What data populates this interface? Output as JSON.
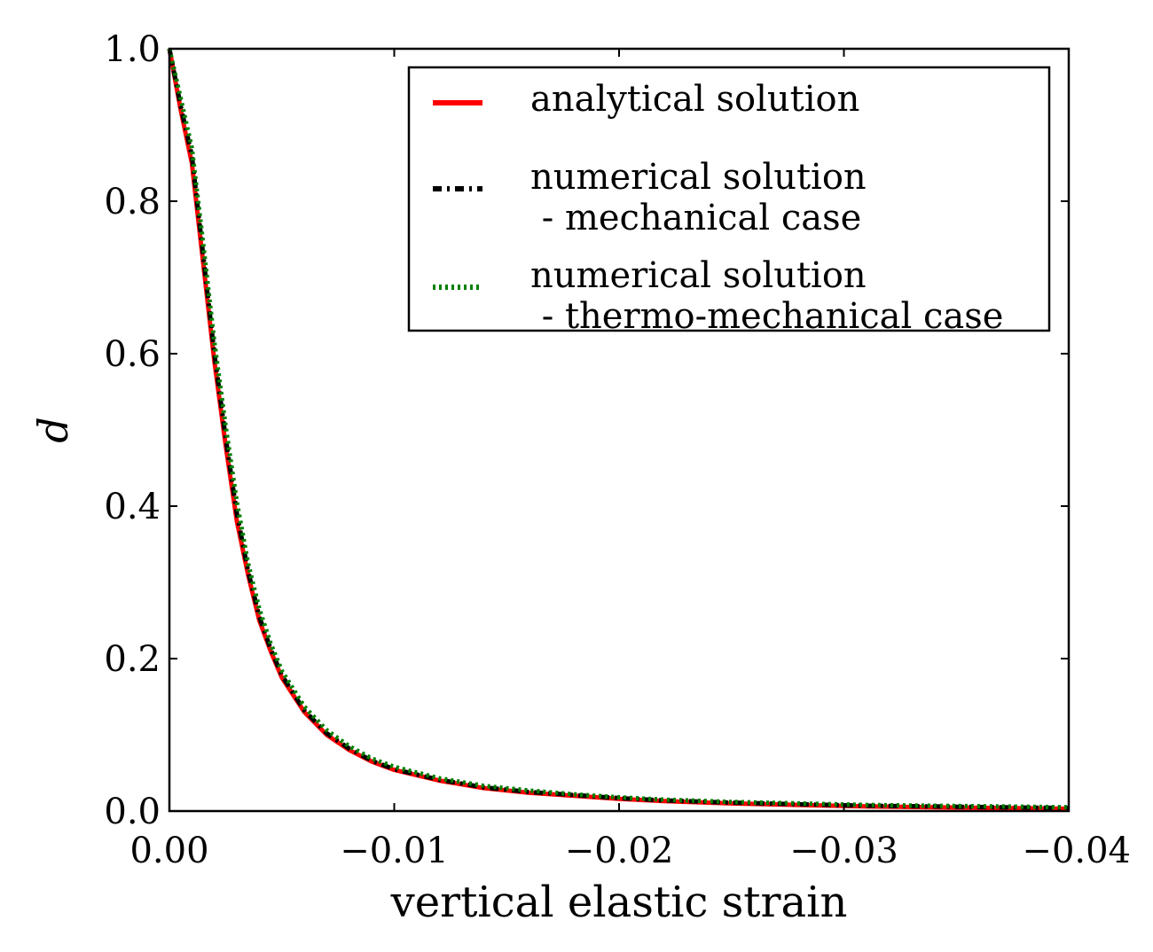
{
  "chart_data": {
    "type": "line",
    "xlabel": "vertical elastic strain",
    "ylabel": "d",
    "xlim": [
      0.0,
      -0.04
    ],
    "ylim": [
      0.0,
      1.0
    ],
    "x_reversed": true,
    "grid": false,
    "legend_position": "top-right",
    "x_ticks": [
      {
        "value": 0.0,
        "label": "0.00"
      },
      {
        "value": -0.01,
        "label": "−0.01"
      },
      {
        "value": -0.02,
        "label": "−0.02"
      },
      {
        "value": -0.03,
        "label": "−0.03"
      },
      {
        "value": -0.04,
        "label": "−0.04"
      }
    ],
    "y_ticks": [
      {
        "value": 0.0,
        "label": "0.0"
      },
      {
        "value": 0.2,
        "label": "0.2"
      },
      {
        "value": 0.4,
        "label": "0.4"
      },
      {
        "value": 0.6,
        "label": "0.6"
      },
      {
        "value": 0.8,
        "label": "0.8"
      },
      {
        "value": 1.0,
        "label": "1.0"
      }
    ],
    "series": [
      {
        "name_lines": [
          "analytical solution"
        ],
        "color": "#ff0000",
        "style": "solid",
        "x": [
          0.0,
          -0.0005,
          -0.001,
          -0.0015,
          -0.002,
          -0.0025,
          -0.003,
          -0.0035,
          -0.004,
          -0.0045,
          -0.005,
          -0.006,
          -0.007,
          -0.008,
          -0.009,
          -0.01,
          -0.012,
          -0.014,
          -0.016,
          -0.018,
          -0.02,
          -0.022,
          -0.025,
          -0.028,
          -0.031,
          -0.034,
          -0.037,
          -0.04
        ],
        "y": [
          1.0,
          0.92,
          0.85,
          0.72,
          0.59,
          0.48,
          0.38,
          0.31,
          0.25,
          0.21,
          0.175,
          0.13,
          0.1,
          0.08,
          0.065,
          0.054,
          0.04,
          0.03,
          0.024,
          0.02,
          0.016,
          0.013,
          0.01,
          0.008,
          0.006,
          0.005,
          0.004,
          0.003
        ]
      },
      {
        "name_lines": [
          "numerical solution",
          " - mechanical case"
        ],
        "color": "#000000",
        "style": "dashdot",
        "x": [
          0.0,
          -0.0005,
          -0.001,
          -0.0015,
          -0.002,
          -0.0025,
          -0.003,
          -0.0035,
          -0.004,
          -0.0045,
          -0.005,
          -0.006,
          -0.007,
          -0.008,
          -0.009,
          -0.01,
          -0.012,
          -0.014,
          -0.016,
          -0.018,
          -0.02,
          -0.022,
          -0.025,
          -0.028,
          -0.031,
          -0.034,
          -0.037,
          -0.04
        ],
        "y": [
          1.0,
          0.925,
          0.86,
          0.73,
          0.6,
          0.49,
          0.39,
          0.315,
          0.255,
          0.213,
          0.178,
          0.132,
          0.102,
          0.082,
          0.066,
          0.055,
          0.041,
          0.031,
          0.025,
          0.021,
          0.017,
          0.014,
          0.011,
          0.009,
          0.007,
          0.006,
          0.005,
          0.004
        ]
      },
      {
        "name_lines": [
          "numerical solution",
          " - thermo-mechanical case"
        ],
        "color": "#008000",
        "style": "dotted",
        "x": [
          0.0,
          -0.0005,
          -0.001,
          -0.0015,
          -0.002,
          -0.0025,
          -0.003,
          -0.0035,
          -0.004,
          -0.0045,
          -0.005,
          -0.006,
          -0.007,
          -0.008,
          -0.009,
          -0.01,
          -0.012,
          -0.014,
          -0.016,
          -0.018,
          -0.02,
          -0.022,
          -0.025,
          -0.028,
          -0.031,
          -0.034,
          -0.037,
          -0.04
        ],
        "y": [
          1.0,
          0.935,
          0.87,
          0.745,
          0.615,
          0.505,
          0.405,
          0.325,
          0.265,
          0.22,
          0.184,
          0.137,
          0.106,
          0.085,
          0.069,
          0.058,
          0.043,
          0.033,
          0.027,
          0.022,
          0.018,
          0.015,
          0.012,
          0.01,
          0.008,
          0.007,
          0.006,
          0.005
        ]
      }
    ]
  }
}
